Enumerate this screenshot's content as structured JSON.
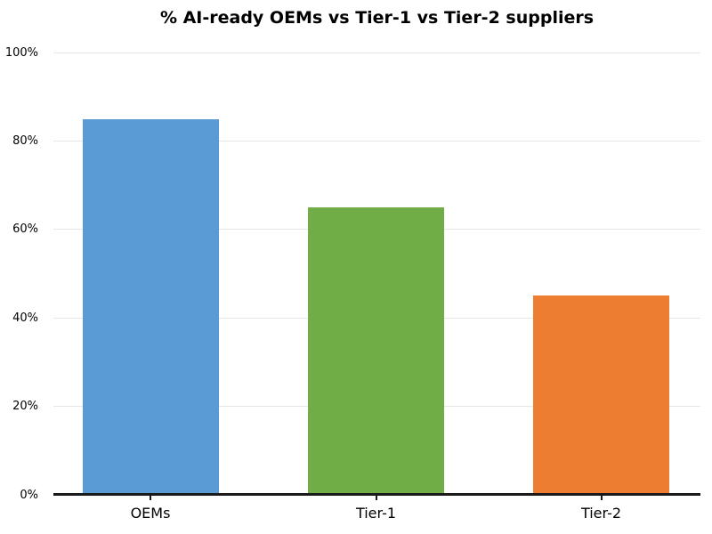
{
  "chart_data": {
    "type": "bar",
    "title": "% AI-ready OEMs vs Tier-1 vs Tier-2 suppliers",
    "categories": [
      "OEMs",
      "Tier-1",
      "Tier-2"
    ],
    "values": [
      85,
      65,
      45
    ],
    "value_format": "percent",
    "bar_colors": [
      "#5b9bd5",
      "#70ad47",
      "#ed7d31"
    ],
    "xlabel": "",
    "ylabel": "",
    "ylim": [
      0,
      100
    ],
    "ytick_values": [
      0,
      20,
      40,
      60,
      80,
      100
    ],
    "ytick_labels": [
      "0%",
      "20%",
      "40%",
      "60%",
      "80%",
      "100%"
    ],
    "grid": "horizontal",
    "gridline_color": "#e6e6e6",
    "axis_line_color": "#1a1a1a",
    "tick_color": "#1a1a1a",
    "text_color": "#000000",
    "background_color": "#ffffff",
    "legend": "none"
  }
}
